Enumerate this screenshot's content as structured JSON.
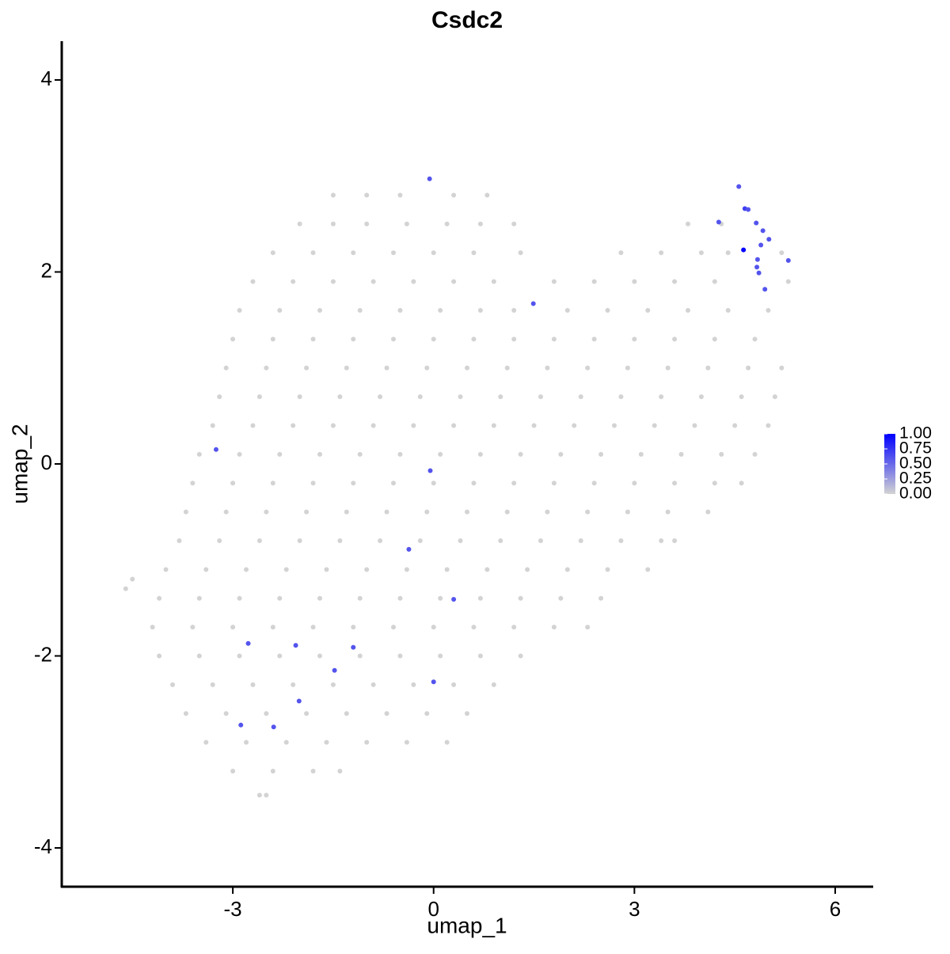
{
  "chart_data": {
    "type": "scatter",
    "title": "Csdc2",
    "x_label": "umap_1",
    "y_label": "umap_2",
    "xlim": [
      -5.556,
      6.568
    ],
    "ylim": [
      -4.404,
      4.404
    ],
    "xticks": [
      -3,
      0,
      3,
      6
    ],
    "yticks": [
      -4,
      -2,
      0,
      2,
      4
    ],
    "color_scale": {
      "low": "#d3d3d3",
      "high": "#0000ff",
      "lim": [
        0,
        1
      ],
      "ticks": [
        {
          "value": 0,
          "label": "0.00"
        },
        {
          "value": 0.25,
          "label": "0.25"
        },
        {
          "value": 0.5,
          "label": "0.50"
        },
        {
          "value": 0.75,
          "label": "0.75"
        },
        {
          "value": 1,
          "label": "1.00"
        }
      ]
    },
    "series": [
      {
        "x": [
          -1.5,
          -1.0,
          -0.5,
          0.3,
          0.8,
          -2.0,
          -1.5,
          -1.0,
          -0.4,
          0.2,
          0.7,
          1.2,
          3.8,
          4.3,
          -2.4,
          -1.8,
          -1.2,
          -0.6,
          0,
          0.6,
          1.3,
          2.8,
          3.4,
          4.0,
          4.4,
          5.2,
          -2.7,
          -2.1,
          -1.5,
          -0.9,
          -0.3,
          0.3,
          0.9,
          1.8,
          2.4,
          3.0,
          3.6,
          4.2,
          5.3,
          -2.9,
          -2.3,
          -1.7,
          -1.1,
          -0.5,
          0.1,
          0.7,
          1.2,
          2.0,
          2.6,
          3.2,
          3.8,
          4.4,
          5.0,
          -3.0,
          -2.4,
          -1.8,
          -1.2,
          -0.6,
          0,
          0.6,
          1.2,
          1.8,
          2.4,
          3.0,
          3.6,
          4.2,
          4.8,
          -3.1,
          -2.5,
          -1.9,
          -1.3,
          -0.7,
          -0.1,
          0.5,
          1.1,
          1.7,
          2.3,
          2.9,
          3.5,
          4.1,
          4.7,
          5.2,
          -3.2,
          -2.6,
          -2.0,
          -1.4,
          -0.8,
          -0.2,
          0.4,
          1.0,
          1.6,
          2.2,
          2.8,
          3.4,
          4.0,
          4.6,
          5.1,
          -3.3,
          -2.7,
          -2.1,
          -1.5,
          -0.9,
          -0.3,
          0.3,
          0.9,
          1.5,
          2.1,
          2.7,
          3.3,
          3.9,
          4.5,
          5.0,
          -3.5,
          -2.9,
          -2.3,
          -1.7,
          -1.1,
          -0.5,
          0.1,
          0.7,
          1.3,
          1.9,
          2.5,
          3.1,
          3.7,
          4.3,
          4.8,
          -3.6,
          -3.0,
          -2.4,
          -1.8,
          -1.2,
          -0.6,
          0,
          0.6,
          1.2,
          1.8,
          2.4,
          3.0,
          3.6,
          4.2,
          4.6,
          -3.7,
          -3.1,
          -2.5,
          -1.9,
          -1.3,
          -0.7,
          -0.1,
          0.5,
          1.1,
          1.7,
          2.3,
          2.9,
          3.5,
          4.1,
          -3.8,
          -3.2,
          -2.6,
          -2.0,
          -1.4,
          -0.8,
          -0.2,
          0.4,
          1.0,
          1.6,
          2.2,
          2.8,
          3.4,
          3.6,
          -4.0,
          -3.4,
          -2.8,
          -2.2,
          -1.6,
          -1.0,
          -0.4,
          0.2,
          0.8,
          1.4,
          2.0,
          2.6,
          3.2,
          -4.6,
          -4.5,
          -4.1,
          -3.5,
          -2.9,
          -2.3,
          -1.7,
          -1.1,
          -0.5,
          0.1,
          0.7,
          1.3,
          1.9,
          2.5,
          -4.2,
          -3.6,
          -3.0,
          -2.4,
          -1.8,
          -1.2,
          -0.6,
          0,
          0.6,
          1.2,
          1.8,
          2.3,
          -4.1,
          -3.5,
          -2.9,
          -2.3,
          -1.7,
          -1.1,
          -0.5,
          0.1,
          0.7,
          1.3,
          -3.9,
          -3.3,
          -2.7,
          -2.1,
          -1.5,
          -0.9,
          -0.3,
          0.3,
          0.9,
          -3.7,
          -3.1,
          -2.5,
          -1.9,
          -1.3,
          -0.7,
          -0.1,
          0.5,
          -3.4,
          -2.8,
          -2.2,
          -1.6,
          -1.0,
          -0.4,
          0.2,
          -3.0,
          -2.4,
          -1.8,
          -1.4,
          -2.6,
          -2.5,
          -0.06,
          4.56,
          4.65,
          4.7,
          4.26,
          4.82,
          4.92,
          5.01,
          4.89,
          4.63,
          5.3,
          4.84,
          4.83,
          4.86,
          4.95,
          1.49,
          -3.25,
          -0.05,
          -0.37,
          0.3,
          -2.77,
          -2.06,
          -1.2,
          -1.48,
          -2.01,
          0.0,
          -2.88,
          -2.39
        ],
        "y": [
          2.8,
          2.8,
          2.8,
          2.8,
          2.8,
          2.5,
          2.5,
          2.5,
          2.5,
          2.5,
          2.5,
          2.5,
          2.5,
          2.5,
          2.2,
          2.2,
          2.2,
          2.2,
          2.2,
          2.2,
          2.2,
          2.2,
          2.2,
          2.2,
          2.2,
          2.2,
          1.9,
          1.9,
          1.9,
          1.9,
          1.9,
          1.9,
          1.9,
          1.9,
          1.9,
          1.9,
          1.9,
          1.9,
          1.9,
          1.6,
          1.6,
          1.6,
          1.6,
          1.6,
          1.6,
          1.6,
          1.6,
          1.6,
          1.6,
          1.6,
          1.6,
          1.6,
          1.6,
          1.3,
          1.3,
          1.3,
          1.3,
          1.3,
          1.3,
          1.3,
          1.3,
          1.3,
          1.3,
          1.3,
          1.3,
          1.3,
          1.3,
          1.0,
          1.0,
          1.0,
          1.0,
          1.0,
          1.0,
          1.0,
          1.0,
          1.0,
          1.0,
          1.0,
          1.0,
          1.0,
          1.0,
          1.0,
          0.7,
          0.7,
          0.7,
          0.7,
          0.7,
          0.7,
          0.7,
          0.7,
          0.7,
          0.7,
          0.7,
          0.7,
          0.7,
          0.7,
          0.7,
          0.4,
          0.4,
          0.4,
          0.4,
          0.4,
          0.4,
          0.4,
          0.4,
          0.4,
          0.4,
          0.4,
          0.4,
          0.4,
          0.4,
          0.4,
          0.1,
          0.1,
          0.1,
          0.1,
          0.1,
          0.1,
          0.1,
          0.1,
          0.1,
          0.1,
          0.1,
          0.1,
          0.1,
          0.1,
          0.1,
          -0.2,
          -0.2,
          -0.2,
          -0.2,
          -0.2,
          -0.2,
          -0.2,
          -0.2,
          -0.2,
          -0.2,
          -0.2,
          -0.2,
          -0.2,
          -0.2,
          -0.2,
          -0.5,
          -0.5,
          -0.5,
          -0.5,
          -0.5,
          -0.5,
          -0.5,
          -0.5,
          -0.5,
          -0.5,
          -0.5,
          -0.5,
          -0.5,
          -0.5,
          -0.8,
          -0.8,
          -0.8,
          -0.8,
          -0.8,
          -0.8,
          -0.8,
          -0.8,
          -0.8,
          -0.8,
          -0.8,
          -0.8,
          -0.8,
          -0.8,
          -1.1,
          -1.1,
          -1.1,
          -1.1,
          -1.1,
          -1.1,
          -1.1,
          -1.1,
          -1.1,
          -1.1,
          -1.1,
          -1.1,
          -1.1,
          -1.3,
          -1.2,
          -1.4,
          -1.4,
          -1.4,
          -1.4,
          -1.4,
          -1.4,
          -1.4,
          -1.4,
          -1.4,
          -1.4,
          -1.4,
          -1.4,
          -1.7,
          -1.7,
          -1.7,
          -1.7,
          -1.7,
          -1.7,
          -1.7,
          -1.7,
          -1.7,
          -1.7,
          -1.7,
          -1.7,
          -2.0,
          -2.0,
          -2.0,
          -2.0,
          -2.0,
          -2.0,
          -2.0,
          -2.0,
          -2.0,
          -2.0,
          -2.3,
          -2.3,
          -2.3,
          -2.3,
          -2.3,
          -2.3,
          -2.3,
          -2.3,
          -2.3,
          -2.6,
          -2.6,
          -2.6,
          -2.6,
          -2.6,
          -2.6,
          -2.6,
          -2.6,
          -2.9,
          -2.9,
          -2.9,
          -2.9,
          -2.9,
          -2.9,
          -2.9,
          -3.2,
          -3.2,
          -3.2,
          -3.2,
          -3.45,
          -3.45,
          2.97,
          2.89,
          2.66,
          2.65,
          2.52,
          2.51,
          2.43,
          2.34,
          2.28,
          2.23,
          2.12,
          2.13,
          2.05,
          1.99,
          1.82,
          1.67,
          0.15,
          -0.07,
          -0.89,
          -1.41,
          -1.87,
          -1.89,
          -1.91,
          -2.15,
          -2.47,
          -2.27,
          -2.72,
          -2.74
        ],
        "values": [
          0,
          0,
          0,
          0,
          0,
          0,
          0,
          0,
          0,
          0,
          0,
          0,
          0,
          0,
          0,
          0,
          0,
          0,
          0,
          0,
          0,
          0,
          0,
          0,
          0,
          0,
          0,
          0,
          0,
          0,
          0,
          0,
          0,
          0,
          0,
          0,
          0,
          0,
          0,
          0,
          0,
          0,
          0,
          0,
          0,
          0,
          0,
          0,
          0,
          0,
          0,
          0,
          0,
          0,
          0,
          0,
          0,
          0,
          0,
          0,
          0,
          0,
          0,
          0,
          0,
          0,
          0,
          0,
          0,
          0,
          0,
          0,
          0,
          0,
          0,
          0,
          0,
          0,
          0,
          0,
          0,
          0,
          0,
          0,
          0,
          0,
          0,
          0,
          0,
          0,
          0,
          0,
          0,
          0,
          0,
          0,
          0,
          0,
          0,
          0,
          0,
          0,
          0,
          0,
          0,
          0,
          0,
          0,
          0,
          0,
          0,
          0,
          0,
          0,
          0,
          0,
          0,
          0,
          0,
          0,
          0,
          0,
          0,
          0,
          0,
          0,
          0,
          0,
          0,
          0,
          0,
          0,
          0,
          0,
          0,
          0,
          0,
          0,
          0,
          0,
          0,
          0,
          0,
          0,
          0,
          0,
          0,
          0,
          0,
          0,
          0,
          0,
          0,
          0,
          0,
          0,
          0,
          0,
          0,
          0,
          0,
          0,
          0,
          0,
          0,
          0,
          0,
          0,
          0,
          0,
          0,
          0,
          0,
          0,
          0,
          0,
          0,
          0,
          0,
          0,
          0,
          0,
          0,
          0,
          0,
          0,
          0,
          0,
          0,
          0,
          0,
          0,
          0,
          0,
          0,
          0,
          0,
          0,
          0,
          0,
          0,
          0,
          0,
          0,
          0,
          0,
          0,
          0,
          0,
          0,
          0,
          0,
          0,
          0,
          0,
          0,
          0,
          0,
          0,
          0,
          0,
          0,
          0,
          0,
          0,
          0,
          0,
          0,
          0,
          0,
          0,
          0,
          0,
          0,
          0,
          0,
          0,
          0,
          0,
          0,
          0,
          0,
          0,
          0,
          0,
          0,
          0,
          0,
          0,
          0.6,
          0.6,
          0.7,
          0.6,
          0.6,
          0.6,
          0.6,
          0.6,
          0.6,
          1.0,
          0.6,
          0.6,
          0.6,
          0.6,
          0.6,
          0.6,
          0.6,
          0.6,
          0.6,
          0.6,
          0.6,
          0.6,
          0.6,
          0.6,
          0.6,
          0.6,
          0.6,
          0.6
        ]
      }
    ]
  }
}
